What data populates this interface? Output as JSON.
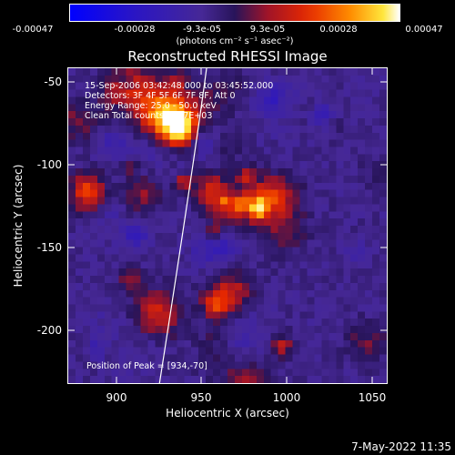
{
  "colorbar": {
    "ticks": [
      "-0.00047",
      "-0.00028",
      "-9.3e-05",
      "9.3e-05",
      "0.00028",
      "0.00047"
    ],
    "units": "(photons cm⁻² s⁻¹ asec⁻²)"
  },
  "title": "Reconstructed RHESSI Image",
  "info": {
    "line1": "15-Sep-2006 03:42:48.000 to 03:45:52.000",
    "line2": "Detectors: 3F 4F 5F 6F 7F 8F, Att 0",
    "line3": "Energy Range: 25.0 - 50.0 keV",
    "line4": "Clean    Total counts: 8.67E+03",
    "peak": "Position of Peak = [934,-70]"
  },
  "axes": {
    "xlabel": "Heliocentric X (arcsec)",
    "ylabel": "Heliocentric Y (arcsec)",
    "xticks": [
      "900",
      "950",
      "1000",
      "1050"
    ],
    "yticks": [
      "-50",
      "-100",
      "-150",
      "-200"
    ],
    "xlim": [
      870,
      1062
    ],
    "ylim": [
      -232,
      -42
    ]
  },
  "date_stamp": "7-May-2022 11:35"
}
